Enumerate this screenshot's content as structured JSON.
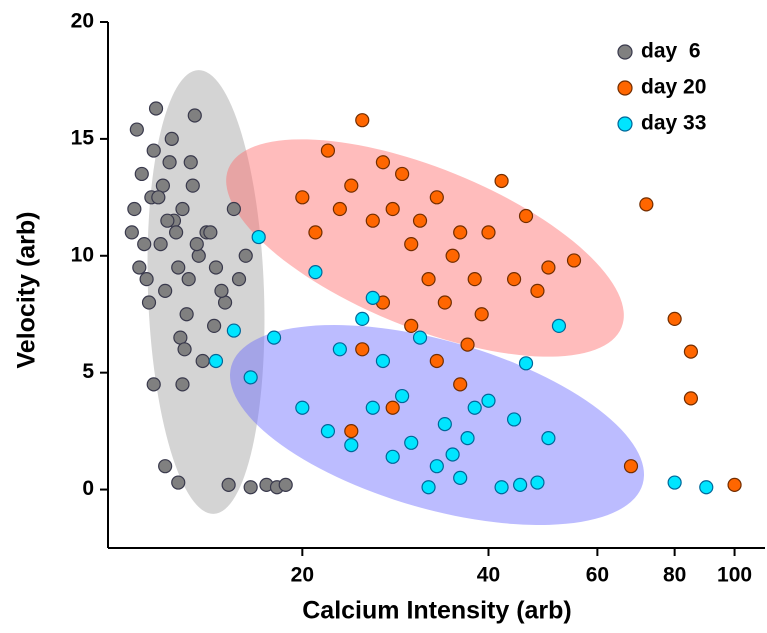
{
  "chart_data": {
    "type": "scatter",
    "xlabel": "Calcium Intensity (arb)",
    "ylabel": "Velocity (arb)",
    "xscale": "log",
    "xlim": [
      9.7,
      112
    ],
    "xticks": [
      20,
      40,
      60,
      80,
      100
    ],
    "ylim": [
      -2.5,
      20
    ],
    "yticks": [
      0,
      5,
      10,
      15,
      20
    ],
    "legend": "upper right",
    "series": [
      {
        "name": "day  6",
        "color": "#808080",
        "x": [
          10.6,
          10.8,
          11.0,
          11.2,
          11.4,
          11.6,
          11.8,
          12.0,
          12.2,
          12.4,
          12.6,
          12.8,
          13.0,
          13.3,
          13.6,
          14.0,
          14.5,
          15.0,
          10.7,
          11.1,
          11.5,
          11.9,
          12.3,
          12.7,
          13.1,
          13.5,
          14.2,
          14.8,
          15.5,
          16.2,
          11.3,
          12.1,
          12.9,
          13.8,
          10.9,
          11.7,
          12.5,
          13.2,
          14.4,
          15.8,
          12.8,
          13.4,
          11.5,
          12.0,
          15.2,
          16.5,
          17.5,
          18.2,
          18.8,
          12.6
        ],
        "values": [
          11,
          15.4,
          13.5,
          9,
          12.5,
          16.3,
          10.5,
          8.5,
          14,
          11.5,
          9.5,
          12,
          7.5,
          13,
          10,
          11,
          9.5,
          8,
          12,
          10.5,
          14.5,
          13,
          15,
          6.5,
          9,
          10.5,
          11,
          8.5,
          12,
          10,
          8,
          11.5,
          6,
          5.5,
          9.5,
          12.5,
          11,
          14,
          7,
          9,
          4.5,
          16,
          4.5,
          1,
          0.2,
          0.1,
          0.2,
          0.1,
          0.2,
          0.3
        ]
      },
      {
        "name": "day 20",
        "color": "#ff6600",
        "x": [
          20,
          21,
          22,
          23,
          24,
          25,
          26,
          27,
          28,
          29,
          30,
          31,
          32,
          33,
          34,
          35,
          36,
          37,
          38,
          39,
          40,
          42,
          44,
          46,
          48,
          50,
          55,
          72,
          80,
          85,
          85,
          68,
          100,
          25,
          27,
          30,
          33,
          36,
          24,
          28
        ],
        "values": [
          12.5,
          11,
          14.5,
          12,
          13,
          15.8,
          11.5,
          14,
          12,
          13.5,
          10.5,
          11.5,
          9,
          12.5,
          8,
          10,
          11,
          6.2,
          9,
          7.5,
          11,
          13.2,
          9,
          11.7,
          8.5,
          9.5,
          9.8,
          12.2,
          7.3,
          5.9,
          3.9,
          1,
          0.2,
          6,
          8,
          7,
          5.5,
          4.5,
          2.5,
          3.5
        ]
      },
      {
        "name": "day 33",
        "color": "#00e5ff",
        "x": [
          14.5,
          15.5,
          16.5,
          17,
          18,
          20,
          21,
          22,
          23,
          24,
          25,
          26,
          27,
          28,
          29,
          30,
          31,
          32,
          33,
          34,
          35,
          36,
          37,
          38,
          40,
          42,
          44,
          45,
          46,
          48,
          50,
          52,
          80,
          90,
          26
        ],
        "values": [
          5.5,
          6.8,
          4.8,
          10.8,
          6.5,
          3.5,
          9.3,
          2.5,
          6,
          1.9,
          7.3,
          3.5,
          5.5,
          1.4,
          4,
          2,
          6.5,
          0.1,
          1,
          2.8,
          1.5,
          0.5,
          2.2,
          3.5,
          3.8,
          0.1,
          3,
          0.2,
          5.4,
          0.3,
          2.2,
          7,
          0.3,
          0.1,
          8.2
        ]
      }
    ]
  }
}
